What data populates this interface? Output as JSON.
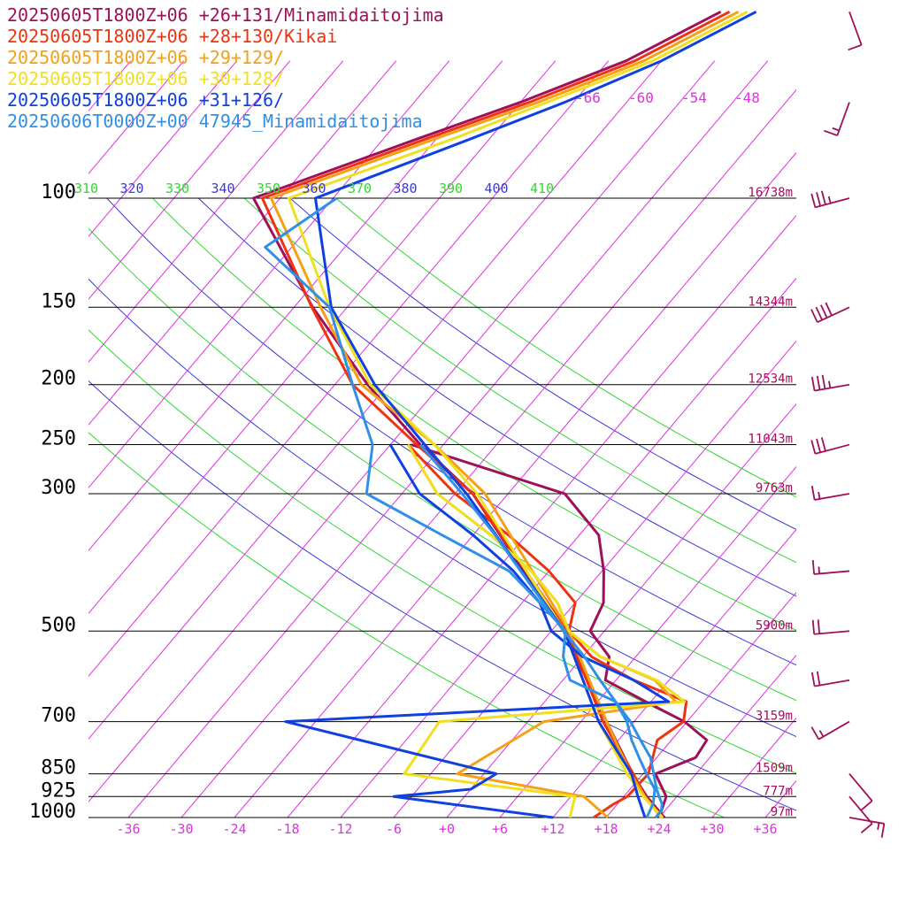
{
  "legend": [
    {
      "text": "20250605T1800Z+06 +26+131/Minamidaitojima",
      "color": "#a0105a"
    },
    {
      "text": "20250605T1800Z+06 +28+130/Kikai",
      "color": "#ee3311"
    },
    {
      "text": "20250605T1800Z+06 +29+129/",
      "color": "#f5a016"
    },
    {
      "text": "20250605T1800Z+06 +30+128/",
      "color": "#f0e020"
    },
    {
      "text": "20250605T1800Z+06 +31+126/",
      "color": "#1040e0"
    },
    {
      "text": "20250606T0000Z+00 47945_Minamidaitojima",
      "color": "#3090e8"
    }
  ],
  "chart_data": {
    "type": "line",
    "chart_kind": "Skew-T log-P sounding",
    "x_axis": {
      "tick_labels": [
        "-36",
        "-30",
        "-24",
        "-18",
        "-12",
        "-6",
        "+0",
        "+6",
        "+12",
        "+18",
        "+24",
        "+30",
        "+36"
      ],
      "range": [
        -40,
        40
      ],
      "unit": "°C"
    },
    "y_axis": {
      "tick_labels": [
        "100",
        "150",
        "200",
        "250",
        "300",
        "500",
        "700",
        "850",
        "925",
        "1000"
      ],
      "range": [
        1000,
        100
      ],
      "scale": "log",
      "unit": "hPa"
    },
    "isobars": [
      100,
      150,
      200,
      250,
      300,
      500,
      700,
      850,
      925,
      1000
    ],
    "heights": [
      {
        "p": 100,
        "label": "16738m"
      },
      {
        "p": 150,
        "label": "14344m"
      },
      {
        "p": 200,
        "label": "12534m"
      },
      {
        "p": 250,
        "label": "11043m"
      },
      {
        "p": 300,
        "label": "9763m"
      },
      {
        "p": 500,
        "label": "5900m"
      },
      {
        "p": 700,
        "label": "3159m"
      },
      {
        "p": 850,
        "label": "1509m"
      },
      {
        "p": 925,
        "label": "777m"
      },
      {
        "p": 1000,
        "label": "97m"
      }
    ],
    "isotherm_labels": [
      "-66",
      "-60",
      "-54",
      "-48"
    ],
    "theta_e_labels": [
      {
        "text": "310",
        "color": "#30d830"
      },
      {
        "text": "320",
        "color": "#3a3ad8"
      },
      {
        "text": "330",
        "color": "#30d830"
      },
      {
        "text": "340",
        "color": "#3a3ad8"
      },
      {
        "text": "350",
        "color": "#30d830"
      },
      {
        "text": "360",
        "color": "#3a3ad8"
      },
      {
        "text": "370",
        "color": "#30d830"
      },
      {
        "text": "380",
        "color": "#3a3ad8"
      },
      {
        "text": "390",
        "color": "#30d830"
      },
      {
        "text": "400",
        "color": "#3a3ad8"
      },
      {
        "text": "410",
        "color": "#30d830"
      }
    ],
    "theta_e_values": [
      310,
      320,
      330,
      340,
      350,
      360,
      370,
      380,
      390,
      400,
      410
    ],
    "series": [
      {
        "name": "20250605T1800Z+06 +26+131/Minamidaitojima",
        "color": "#a0105a",
        "temperature": [
          [
            1000,
            24.6
          ],
          [
            925,
            20.6
          ],
          [
            850,
            16.8
          ],
          [
            700,
            8.9
          ],
          [
            500,
            -4.6
          ],
          [
            300,
            -28.0
          ],
          [
            250,
            -38.6
          ],
          [
            200,
            -50.3
          ],
          [
            150,
            -63.9
          ],
          [
            100,
            -81.0
          ],
          [
            80,
            -68.0
          ],
          [
            70,
            -60.0
          ],
          [
            60,
            -52.0
          ],
          [
            50,
            -46.0
          ]
        ],
        "dewpoint": [
          [
            1000,
            24.0
          ],
          [
            925,
            22.8
          ],
          [
            850,
            19.4
          ],
          [
            800,
            22.4
          ],
          [
            750,
            22.0
          ],
          [
            700,
            17.7
          ],
          [
            650,
            11.4
          ],
          [
            600,
            4.8
          ],
          [
            550,
            3.0
          ],
          [
            500,
            -1.6
          ],
          [
            450,
            -2.8
          ],
          [
            400,
            -5.8
          ],
          [
            350,
            -9.8
          ],
          [
            300,
            -17.6
          ],
          [
            250,
            -39.6
          ]
        ]
      },
      {
        "name": "20250605T1800Z+06 +28+130/Kikai",
        "color": "#ee3311",
        "temperature": [
          [
            1000,
            24.4
          ],
          [
            925,
            20.4
          ],
          [
            850,
            16.9
          ],
          [
            700,
            8.5
          ],
          [
            500,
            -4.2
          ],
          [
            300,
            -28.0
          ],
          [
            250,
            -39.0
          ],
          [
            200,
            -52.0
          ],
          [
            150,
            -64.0
          ],
          [
            100,
            -80.0
          ],
          [
            80,
            -67.0
          ],
          [
            70,
            -59.0
          ],
          [
            60,
            -51.0
          ],
          [
            50,
            -45.0
          ]
        ],
        "dewpoint": [
          [
            1000,
            16.6
          ],
          [
            950,
            17.6
          ],
          [
            925,
            18.4
          ],
          [
            850,
            18.6
          ],
          [
            750,
            16.4
          ],
          [
            700,
            17.6
          ],
          [
            650,
            16.0
          ],
          [
            600,
            8.0
          ],
          [
            550,
            1.0
          ],
          [
            500,
            -4.0
          ],
          [
            450,
            -6.0
          ],
          [
            400,
            -12.0
          ],
          [
            350,
            -20.0
          ],
          [
            300,
            -30.0
          ],
          [
            250,
            -40.0
          ]
        ]
      },
      {
        "name": "20250605T1800Z+06 +29+129/",
        "color": "#f5a016",
        "temperature": [
          [
            1000,
            24.2
          ],
          [
            925,
            20.4
          ],
          [
            850,
            16.6
          ],
          [
            700,
            8.9
          ],
          [
            500,
            -4.0
          ],
          [
            300,
            -26.6
          ],
          [
            250,
            -37.0
          ],
          [
            200,
            -51.0
          ],
          [
            150,
            -63.0
          ],
          [
            100,
            -79.0
          ],
          [
            80,
            -66.0
          ],
          [
            70,
            -58.0
          ],
          [
            60,
            -50.0
          ],
          [
            50,
            -44.0
          ]
        ],
        "dewpoint": [
          [
            1000,
            18.2
          ],
          [
            925,
            13.5
          ],
          [
            850,
            -3.0
          ],
          [
            700,
            1.8
          ],
          [
            650,
            14.8
          ],
          [
            600,
            10.4
          ],
          [
            550,
            2.0
          ],
          [
            500,
            -4.0
          ],
          [
            450,
            -8.0
          ],
          [
            400,
            -14.0
          ],
          [
            350,
            -22.0
          ],
          [
            300,
            -32.0
          ],
          [
            250,
            -40.0
          ]
        ]
      },
      {
        "name": "20250605T1800Z+06 +30+128/",
        "color": "#f0e020",
        "temperature": [
          [
            1000,
            24.4
          ],
          [
            925,
            20.2
          ],
          [
            850,
            16.2
          ],
          [
            700,
            8.0
          ],
          [
            500,
            -4.5
          ],
          [
            300,
            -27.5
          ],
          [
            250,
            -37.0
          ],
          [
            200,
            -50.0
          ],
          [
            150,
            -62.0
          ],
          [
            100,
            -77.0
          ],
          [
            80,
            -64.0
          ],
          [
            70,
            -57.0
          ],
          [
            60,
            -49.0
          ],
          [
            50,
            -43.0
          ]
        ],
        "dewpoint": [
          [
            1000,
            13.9
          ],
          [
            925,
            12.5
          ],
          [
            850,
            -9.0
          ],
          [
            700,
            -10.0
          ],
          [
            650,
            15.8
          ],
          [
            600,
            10.6
          ],
          [
            550,
            2.0
          ],
          [
            500,
            -4.0
          ],
          [
            450,
            -8.0
          ],
          [
            400,
            -14.0
          ],
          [
            350,
            -22.0
          ],
          [
            300,
            -32.0
          ],
          [
            250,
            -40.0
          ]
        ]
      },
      {
        "name": "20250605T1800Z+06 +31+126/",
        "color": "#1040e0",
        "temperature": [
          [
            1000,
            22.4
          ],
          [
            925,
            19.6
          ],
          [
            850,
            16.7
          ],
          [
            700,
            8.0
          ],
          [
            500,
            -4.5
          ],
          [
            300,
            -28.7
          ],
          [
            250,
            -38.1
          ],
          [
            200,
            -49.5
          ],
          [
            150,
            -61.8
          ],
          [
            100,
            -74.0
          ],
          [
            80,
            -62.0
          ],
          [
            70,
            -55.0
          ],
          [
            60,
            -48.0
          ],
          [
            50,
            -42.0
          ]
        ],
        "dewpoint": [
          [
            1000,
            12.0
          ],
          [
            925,
            -8.0
          ],
          [
            900,
            0.0
          ],
          [
            850,
            1.4
          ],
          [
            700,
            -27.4
          ],
          [
            650,
            14.0
          ],
          [
            600,
            8.0
          ],
          [
            550,
            0.0
          ],
          [
            500,
            -6.0
          ],
          [
            450,
            -10.0
          ],
          [
            400,
            -16.0
          ],
          [
            350,
            -24.0
          ],
          [
            300,
            -34.0
          ],
          [
            250,
            -42.0
          ]
        ]
      },
      {
        "name": "20250606T0000Z+00 47945_Minamidaitojima",
        "color": "#3090e8",
        "temperature": [
          [
            1000,
            23.6
          ],
          [
            975,
            23.6
          ],
          [
            950,
            23.0
          ],
          [
            925,
            22.0
          ],
          [
            900,
            21.0
          ],
          [
            850,
            19.2
          ],
          [
            800,
            17.3
          ],
          [
            750,
            14.5
          ],
          [
            700,
            11.6
          ],
          [
            650,
            8.0
          ],
          [
            600,
            4.2
          ],
          [
            550,
            0.2
          ],
          [
            500,
            -4.6
          ],
          [
            400,
            -15.2
          ],
          [
            350,
            -21.5
          ],
          [
            300,
            -29.2
          ],
          [
            250,
            -38.6
          ]
        ],
        "dewpoint": [
          [
            1000,
            22.6
          ],
          [
            950,
            22.0
          ],
          [
            900,
            20.8
          ],
          [
            850,
            18.4
          ],
          [
            800,
            16.0
          ],
          [
            750,
            13.5
          ],
          [
            700,
            11.2
          ],
          [
            650,
            8.0
          ],
          [
            600,
            0.8
          ],
          [
            550,
            -2.2
          ],
          [
            500,
            -4.4
          ],
          [
            450,
            -10.0
          ],
          [
            400,
            -16.5
          ],
          [
            350,
            -27.5
          ],
          [
            300,
            -40.0
          ],
          [
            250,
            -44.0
          ],
          [
            200,
            -52.0
          ],
          [
            150,
            -62.0
          ],
          [
            120,
            -75.0
          ],
          [
            100,
            -71.6
          ]
        ]
      }
    ],
    "wind_barbs": [
      {
        "station": "20250605T1800Z+06 +26+131/Minamidaitojima",
        "color": "#a0105a",
        "levels": [
          {
            "p": 1000,
            "dir": 100,
            "spd": 15
          },
          {
            "p": 925,
            "dir": 140,
            "spd": 10
          },
          {
            "p": 850,
            "dir": 140,
            "spd": 10
          },
          {
            "p": 700,
            "dir": 240,
            "spd": 15
          },
          {
            "p": 600,
            "dir": 260,
            "spd": 20
          },
          {
            "p": 500,
            "dir": 265,
            "spd": 20
          },
          {
            "p": 400,
            "dir": 265,
            "spd": 15
          },
          {
            "p": 300,
            "dir": 260,
            "spd": 15
          },
          {
            "p": 250,
            "dir": 255,
            "spd": 30
          },
          {
            "p": 200,
            "dir": 260,
            "spd": 35
          },
          {
            "p": 150,
            "dir": 245,
            "spd": 40
          },
          {
            "p": 100,
            "dir": 255,
            "spd": 35
          },
          {
            "p": 70,
            "dir": 200,
            "spd": 15
          },
          {
            "p": 50,
            "dir": 160,
            "spd": 10
          }
        ]
      }
    ]
  }
}
